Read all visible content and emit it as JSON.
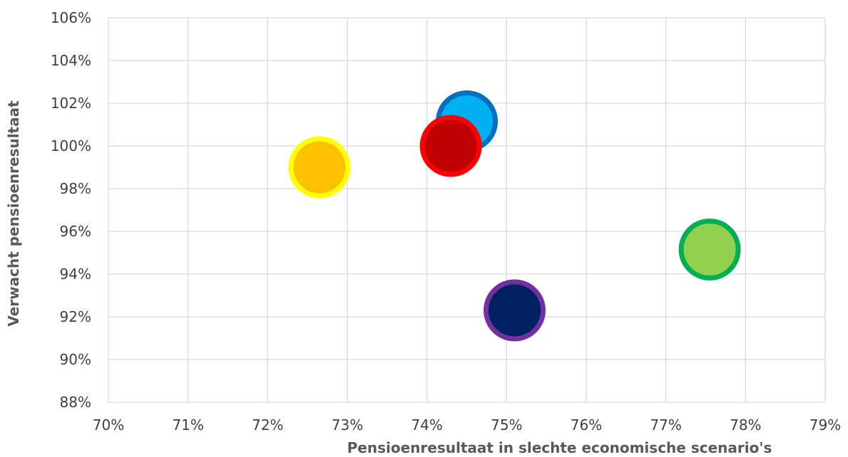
{
  "chart_data": {
    "type": "scatter",
    "title": "",
    "xlabel": "Pensioenresultaat in slechte economische scenario's",
    "ylabel": "Verwacht pensioenresultaat",
    "xlim": [
      70,
      79
    ],
    "ylim": [
      88,
      106
    ],
    "x_ticks": [
      70,
      71,
      72,
      73,
      74,
      75,
      76,
      77,
      78,
      79
    ],
    "y_ticks": [
      88,
      90,
      92,
      94,
      96,
      98,
      100,
      102,
      104,
      106
    ],
    "x_tick_labels": [
      "70%",
      "71%",
      "72%",
      "73%",
      "74%",
      "75%",
      "76%",
      "77%",
      "78%",
      "79%"
    ],
    "y_tick_labels": [
      "88%",
      "90%",
      "92%",
      "94%",
      "96%",
      "98%",
      "100%",
      "102%",
      "104%",
      "106%"
    ],
    "grid": true,
    "legend": "none",
    "points": [
      {
        "x": 72.65,
        "y": 99.0,
        "fill": "#FFC000",
        "stroke": "#FFFF00"
      },
      {
        "x": 74.5,
        "y": 101.15,
        "fill": "#00B0F0",
        "stroke": "#0070C0"
      },
      {
        "x": 74.3,
        "y": 100.0,
        "fill": "#C00000",
        "stroke": "#FF0000"
      },
      {
        "x": 75.1,
        "y": 92.3,
        "fill": "#002060",
        "stroke": "#7030A0"
      },
      {
        "x": 77.55,
        "y": 95.15,
        "fill": "#92D050",
        "stroke": "#00B050"
      }
    ]
  }
}
